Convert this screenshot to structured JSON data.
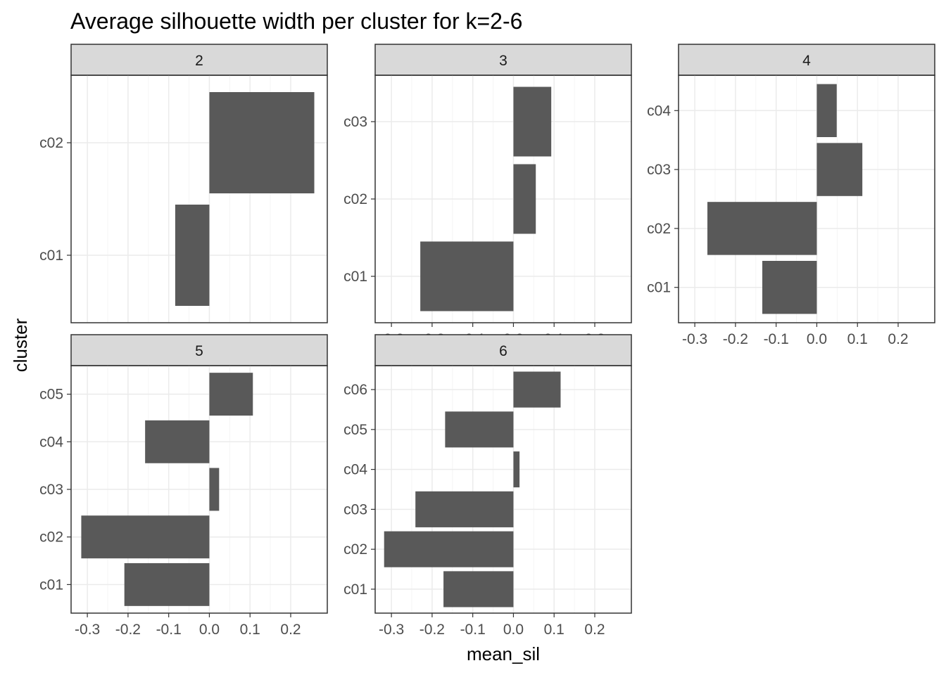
{
  "chart_data": {
    "type": "bar",
    "orientation": "horizontal",
    "title": "Average silhouette width per cluster for k=2-6",
    "xlabel": "mean_sil",
    "ylabel": "cluster",
    "xlim": [
      -0.34,
      0.29
    ],
    "x_ticks": [
      -0.3,
      -0.2,
      -0.1,
      0.0,
      0.1,
      0.2
    ],
    "x_tick_labels": [
      "-0.3",
      "-0.2",
      "-0.1",
      "0.0",
      "0.1",
      "0.2"
    ],
    "grid": true,
    "bar_color": "#595959",
    "facet_by": "k",
    "panels": [
      {
        "facet": "2",
        "categories": [
          "c01",
          "c02"
        ],
        "values": [
          -0.084,
          0.258
        ]
      },
      {
        "facet": "3",
        "categories": [
          "c01",
          "c02",
          "c03"
        ],
        "values": [
          -0.229,
          0.055,
          0.093
        ]
      },
      {
        "facet": "4",
        "categories": [
          "c01",
          "c02",
          "c03",
          "c04"
        ],
        "values": [
          -0.134,
          -0.269,
          0.112,
          0.049
        ]
      },
      {
        "facet": "5",
        "categories": [
          "c01",
          "c02",
          "c03",
          "c04",
          "c05"
        ],
        "values": [
          -0.209,
          -0.315,
          0.024,
          -0.158,
          0.107
        ]
      },
      {
        "facet": "6",
        "categories": [
          "c01",
          "c02",
          "c03",
          "c04",
          "c05",
          "c06"
        ],
        "values": [
          -0.172,
          -0.318,
          -0.241,
          0.015,
          -0.168,
          0.116
        ]
      }
    ]
  },
  "colors": {
    "strip_fill": "#d9d9d9",
    "panel_border": "#333333",
    "grid_major": "#ebebeb",
    "grid_minor": "#f5f5f5"
  }
}
